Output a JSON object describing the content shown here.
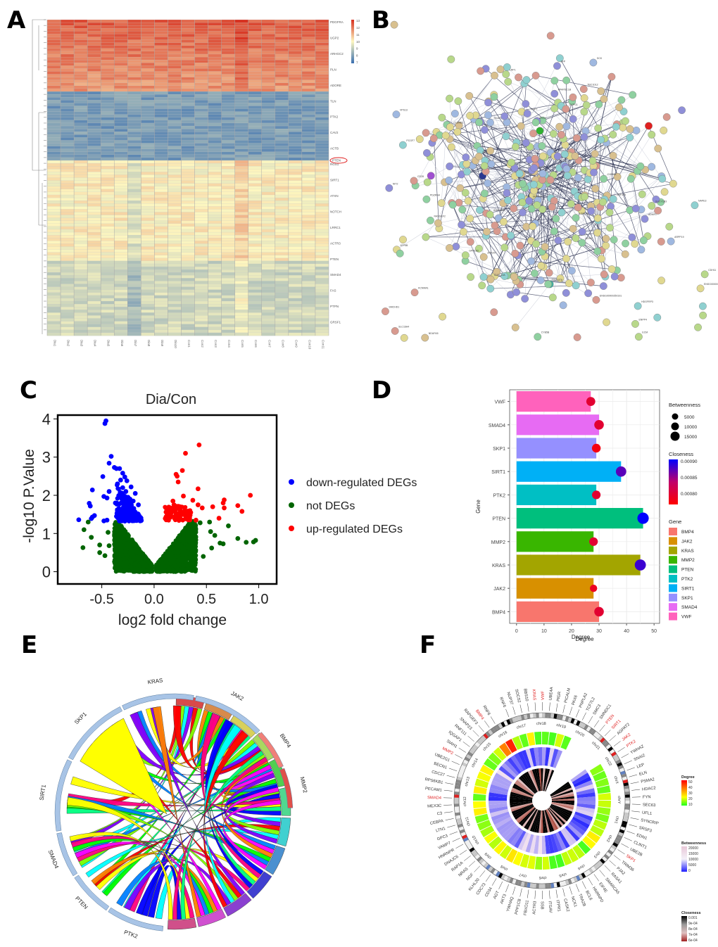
{
  "panel_labels": [
    "A",
    "B",
    "C",
    "D",
    "E",
    "F"
  ],
  "chart_data": [
    {
      "id": "A",
      "type": "heatmap",
      "title": "",
      "columns": [
        "Dia1",
        "Dia2",
        "Dia3",
        "Dia4",
        "Dia5",
        "Dia6",
        "Dia7",
        "Dia8",
        "Dia9",
        "Dia10",
        "Con1",
        "Con2",
        "Con3",
        "Con4",
        "Con5",
        "Con6",
        "Con7",
        "Con8",
        "Con9",
        "Con10",
        "Con11"
      ],
      "row_labels_visible": [
        "PDGFRA",
        "UGP2",
        "ARHGC2",
        "PLN",
        "ADORE",
        "TLN",
        "PTK2",
        "CAV2",
        "ACTB",
        "RGS1",
        "SIRT1",
        "ATXN",
        "NOTCH",
        "LRRC1",
        "ACTR3",
        "PTEN",
        "SMAD4",
        "FAS",
        "PTPN",
        "GRSF1"
      ],
      "highlighted_row": "PTEN",
      "row_count": 110,
      "row_blocks": [
        {
          "rows": 25,
          "level": "high"
        },
        {
          "rows": 24,
          "level": "low"
        },
        {
          "rows": 35,
          "level": "mid-high"
        },
        {
          "rows": 26,
          "level": "mid-low"
        }
      ],
      "colorbar": {
        "ticks": [
          13,
          12,
          11,
          10,
          9,
          8,
          7
        ],
        "min": 7,
        "max": 13,
        "low_color": "#3a6fb0",
        "mid_color": "#fdf7c0",
        "high_color": "#d7301f"
      }
    },
    {
      "id": "B",
      "type": "network",
      "title": "",
      "description": "Protein-protein interaction network of DEGs",
      "node_colors": [
        "#8f8fd8",
        "#8fd0a0",
        "#b8d88a",
        "#8fd0d0",
        "#d8c08f",
        "#d89a8f",
        "#9fb8e0",
        "#e0d890"
      ],
      "highlight_nodes": [
        {
          "color": "#e02020"
        },
        {
          "color": "#2a3890"
        },
        {
          "color": "#30b030"
        },
        {
          "color": "#40b0a0"
        },
        {
          "color": "#a050d0"
        }
      ],
      "visible_node_labels": [
        "ZNF415",
        "ADMF1",
        "GUCY1B3",
        "C5orf24",
        "NDUFA5",
        "CLEC12A",
        "NAPE3",
        "LRRC40",
        "ATP5B",
        "PPAPDC1B",
        "CYB561",
        "ZNF207",
        "KCNMA1",
        "PCGF7",
        "DCK",
        "ENPP4",
        "ATG4",
        "CD28",
        "ANKRD46",
        "SLC16A4",
        "ENSG00000250191",
        "CDH11",
        "SERGEF",
        "RASGEF2",
        "CYB5B",
        "SCAP5",
        "VPS13",
        "ECM",
        "HDGFRP3",
        "ARPP19",
        "PNPT",
        "CLDND1",
        "TBC1D12",
        "GPR183",
        "ZFP",
        "ENSG00000233408",
        "CCPG1",
        "FAM107A",
        "LRP1",
        "SMCHD1",
        "ADH5",
        "NIT2",
        "LGALS8",
        "PDZRN4"
      ]
    },
    {
      "id": "C",
      "type": "scatter",
      "title": "Dia/Con",
      "xlabel": "log2 fold change",
      "ylabel": "-log10 P.Value",
      "xlim": [
        -0.8,
        1.05
      ],
      "ylim": [
        -0.1,
        4.1
      ],
      "xticks": [
        -0.5,
        0.0,
        0.5,
        1.0
      ],
      "xtick_labels": [
        "-0.5",
        "0.0",
        "0.5",
        "1.0"
      ],
      "yticks": [
        0,
        1,
        2,
        3,
        4
      ],
      "ytick_labels": [
        "0",
        "1",
        "2",
        "3",
        "4"
      ],
      "significance_threshold": 1.3,
      "legend": [
        {
          "label": "down-regulated DEGs",
          "color": "#0000ff"
        },
        {
          "label": "not DEGs",
          "color": "#006400"
        },
        {
          "label": "up-regulated DEGs",
          "color": "#ff0000"
        }
      ],
      "legend_position": "right",
      "series": [
        {
          "name": "down-regulated DEGs",
          "color": "#0000ff",
          "points": [
            [
              -0.46,
              3.95
            ],
            [
              -0.47,
              3.88
            ],
            [
              -0.41,
              3.02
            ],
            [
              -0.43,
              2.84
            ],
            [
              -0.38,
              2.73
            ],
            [
              -0.36,
              2.7
            ],
            [
              -0.33,
              2.7
            ],
            [
              -0.49,
              2.49
            ],
            [
              -0.59,
              2.14
            ],
            [
              -0.43,
              2.1
            ],
            [
              -0.48,
              1.97
            ],
            [
              -0.45,
              1.93
            ],
            [
              -0.62,
              1.79
            ],
            [
              -0.61,
              1.72
            ],
            [
              -0.57,
              1.47
            ],
            [
              -0.59,
              1.43
            ],
            [
              -0.6,
              1.39
            ],
            [
              -0.72,
              1.36
            ],
            [
              -0.48,
              1.33
            ],
            [
              -0.45,
              1.35
            ],
            [
              -0.3,
              2.58
            ],
            [
              -0.28,
              2.48
            ],
            [
              -0.26,
              2.38
            ],
            [
              -0.22,
              2.22
            ],
            [
              -0.18,
              2.05
            ],
            [
              -0.15,
              1.75
            ],
            [
              -0.32,
              2.4
            ],
            [
              -0.3,
              2.2
            ],
            [
              -0.27,
              2.1
            ],
            [
              -0.25,
              1.95
            ],
            [
              -0.23,
              1.9
            ],
            [
              -0.2,
              1.85
            ],
            [
              -0.35,
              2.3
            ],
            [
              -0.33,
              2.0
            ],
            [
              -0.3,
              1.8
            ],
            [
              -0.28,
              1.7
            ],
            [
              -0.26,
              1.6
            ],
            [
              -0.24,
              1.55
            ],
            [
              -0.22,
              1.5
            ],
            [
              -0.2,
              1.45
            ],
            [
              -0.18,
              1.42
            ],
            [
              -0.16,
              1.4
            ],
            [
              -0.34,
              1.6
            ],
            [
              -0.32,
              1.5
            ],
            [
              -0.36,
              1.45
            ],
            [
              -0.37,
              1.8
            ]
          ]
        },
        {
          "name": "up-regulated DEGs",
          "color": "#ff0000",
          "points": [
            [
              0.43,
              3.32
            ],
            [
              0.3,
              3.1
            ],
            [
              0.27,
              2.65
            ],
            [
              0.21,
              2.55
            ],
            [
              0.22,
              2.5
            ],
            [
              0.23,
              2.35
            ],
            [
              0.42,
              2.17
            ],
            [
              0.92,
              2.0
            ],
            [
              0.28,
              1.98
            ],
            [
              0.37,
              1.87
            ],
            [
              0.67,
              1.88
            ],
            [
              0.66,
              1.8
            ],
            [
              0.56,
              1.7
            ],
            [
              0.8,
              1.73
            ],
            [
              0.46,
              1.67
            ],
            [
              0.67,
              1.67
            ],
            [
              0.42,
              1.75
            ],
            [
              0.84,
              1.58
            ],
            [
              0.62,
              1.4
            ],
            [
              0.4,
              1.35
            ],
            [
              0.13,
              1.45
            ],
            [
              0.15,
              1.55
            ],
            [
              0.17,
              1.6
            ],
            [
              0.19,
              1.75
            ],
            [
              0.21,
              1.65
            ],
            [
              0.23,
              1.7
            ],
            [
              0.25,
              1.6
            ],
            [
              0.27,
              1.55
            ],
            [
              0.29,
              1.5
            ],
            [
              0.31,
              1.45
            ],
            [
              0.33,
              1.4
            ],
            [
              0.2,
              1.45
            ],
            [
              0.24,
              1.5
            ],
            [
              0.35,
              1.55
            ],
            [
              0.18,
              1.85
            ]
          ]
        },
        {
          "name": "not DEGs",
          "color": "#006400",
          "points": [
            [
              -0.63,
              1.3
            ],
            [
              -0.67,
              1.1
            ],
            [
              -0.6,
              0.9
            ],
            [
              -0.52,
              0.7
            ],
            [
              -0.68,
              0.63
            ],
            [
              -0.52,
              0.5
            ],
            [
              -0.47,
              0.42
            ],
            [
              -0.44,
              1.03
            ],
            [
              -0.43,
              0.68
            ],
            [
              0.44,
              1.28
            ],
            [
              0.53,
              1.3
            ],
            [
              0.54,
              1.05
            ],
            [
              0.58,
              0.95
            ],
            [
              0.63,
              0.75
            ],
            [
              0.71,
              1.2
            ],
            [
              0.8,
              0.87
            ],
            [
              0.88,
              0.77
            ],
            [
              0.95,
              0.78
            ],
            [
              0.97,
              0.82
            ],
            [
              0.66,
              0.73
            ],
            [
              0.47,
              0.4
            ],
            [
              0.32,
              0.16
            ],
            [
              -0.3,
              0.2
            ],
            [
              0.55,
              0.62
            ]
          ]
        }
      ],
      "dense_region_note": "thousands of not-DEG points form a V shape from (0,0) up to |log2FC|~0.4 at y~1.3"
    },
    {
      "id": "D",
      "type": "bar",
      "title": "",
      "xlabel": "Degree",
      "ylabel": "Gene",
      "xlim": [
        0,
        52
      ],
      "xticks": [
        0,
        10,
        20,
        30,
        40,
        50
      ],
      "orientation": "horizontal",
      "categories": [
        "BMP4",
        "JAK2",
        "KRAS",
        "MMP2",
        "PTEN",
        "PTK2",
        "SIRT1",
        "SKP1",
        "SMAD4",
        "VWF"
      ],
      "values": [
        30,
        28,
        45,
        28,
        46,
        29,
        38,
        29,
        30,
        27
      ],
      "bar_colors": [
        "#f8766d",
        "#d89000",
        "#a3a500",
        "#39b600",
        "#00bf7d",
        "#00bfc4",
        "#00b0f6",
        "#9590ff",
        "#e76bf3",
        "#ff62bc"
      ],
      "betweenness": [
        9000,
        3000,
        15000,
        6000,
        16000,
        6000,
        12000,
        6500,
        9000,
        7000
      ],
      "closeness": [
        0.0008,
        0.00079,
        0.00088,
        0.0008,
        0.0009,
        0.0008,
        0.00087,
        0.00078,
        0.0008,
        0.0008
      ],
      "legend_position": "right",
      "legend_betweenness": {
        "title": "Betweenness",
        "entries": [
          "5000",
          "10000",
          "15000"
        ]
      },
      "legend_closeness": {
        "title": "Closeness",
        "ticks": [
          "0.00090",
          "0.00085",
          "0.00080"
        ],
        "low_color": "#ff0000",
        "high_color": "#0000ff"
      },
      "legend_gene": {
        "title": "Gene",
        "entries": [
          "BMP4",
          "JAK2",
          "KRAS",
          "MMP2",
          "PTEN",
          "PTK2",
          "SIRT1",
          "SKP1",
          "SMAD4",
          "VWF"
        ]
      },
      "grid": true
    },
    {
      "id": "E",
      "type": "chord",
      "title": "",
      "hub_genes": [
        "MMP2",
        "BMP4",
        "JAK2",
        "KRAS",
        "SKP1",
        "SIRT1",
        "SMAD4",
        "PTEN",
        "PTK2"
      ],
      "hub_sector_colors": [
        "#e0504a",
        "#f08078",
        "#a8c4e6",
        "#a8c4e6",
        "#a8c4e6",
        "#a8c4e6",
        "#a8c4e6",
        "#a8c4e6",
        "#a8c4e6"
      ],
      "target_sector_colors": [
        "#d84a4a",
        "#d88a4a",
        "#d8d05a",
        "#a8d860",
        "#50d050",
        "#50d890",
        "#40d0d0",
        "#4a90d0",
        "#4040d0",
        "#8a40d0",
        "#d050d0",
        "#d0508a"
      ],
      "ribbon_palette": [
        "#ff0000",
        "#ff8000",
        "#ffff00",
        "#80ff00",
        "#00ff00",
        "#00ff80",
        "#00ffff",
        "#0080ff",
        "#0000ff",
        "#8000ff",
        "#ff00ff",
        "#ff0080"
      ]
    },
    {
      "id": "F",
      "type": "circos",
      "title": "Degree",
      "chromosomes": [
        "chr1",
        "chr2",
        "chr3",
        "chr4",
        "chr5",
        "chr6",
        "chr7",
        "chr8",
        "chr9",
        "chr10",
        "chr11",
        "chr12",
        "chr13",
        "chr14",
        "chr15",
        "chr16",
        "chr17",
        "chr18",
        "chr19",
        "chr20",
        "chr21",
        "chr22",
        "chrX",
        "chrY"
      ],
      "gene_labels": [
        "RNF6",
        "NUP37",
        "SOCS2",
        "BBS10",
        "KRAS",
        "VWF",
        "UBE4A",
        "PIGR",
        "PICALM",
        "PAX6",
        "PNPLA2",
        "TCF7L2",
        "SMC3",
        "SMNDC1",
        "PTEN",
        "SIRT1",
        "AGPAT2",
        "JAK2",
        "PTK2",
        "YWHAZ",
        "SNAI2",
        "LEP",
        "ELN",
        "PSMA2",
        "HDAC2",
        "FYN",
        "SEC63",
        "UFL1",
        "SYNCRIP",
        "SRSF3",
        "EDN1",
        "CLINT1",
        "UBE2B",
        "SKP1",
        "TRIM36",
        "PJA2",
        "RASA1",
        "SMARCA5",
        "EIF4E",
        "HNRNPD",
        "BCL6",
        "TRA2B",
        "NCK1",
        "CASK2",
        "ITPR1",
        "ITGAV",
        "SSB",
        "ACTR3",
        "FBXO11",
        "PPP1CB",
        "YWHAQ",
        "AKT3",
        "AGT",
        "CD34",
        "CDC73",
        "KLHL20",
        "NGF",
        "NRAS",
        "RAP1A",
        "DNAJC6",
        "HNRNPR",
        "VAMP7",
        "GPC3",
        "LTN1",
        "CEBPA",
        "C3",
        "MEX3C",
        "SMAD4",
        "PECAM1",
        "RPS6KB1",
        "CDC27",
        "BECN1",
        "UBE2G1",
        "MMP2",
        "SIAH1",
        "IQGAP1",
        "RNF111",
        "SNAP23",
        "RAPGEF3",
        "BMP4",
        "RNF6"
      ],
      "highlighted_genes": [
        "KRAS",
        "VWF",
        "PTEN",
        "SIRT1",
        "JAK2",
        "PTK2",
        "SKP1",
        "SMAD4",
        "MMP2",
        "BMP4"
      ],
      "highlight_color": "#e02020",
      "legend_degree": {
        "title": "Degree",
        "ticks": [
          "50",
          "40",
          "30",
          "20",
          "10"
        ]
      },
      "legend_betweenness": {
        "title": "Betweenness",
        "ticks": [
          "20000",
          "15000",
          "10000",
          "5000",
          "0"
        ]
      },
      "legend_closeness": {
        "title": "Closeness",
        "ticks": [
          "0.001",
          "9e-04",
          "8e-04",
          "7e-04",
          "6e-04"
        ]
      }
    }
  ]
}
